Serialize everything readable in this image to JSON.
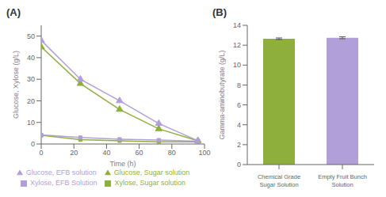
{
  "chart_data": [
    {
      "type": "line",
      "title": "(A)",
      "xlabel": "Time (h)",
      "ylabel": "Glucose, Xylose (g/L)",
      "x": [
        0,
        24,
        48,
        72,
        96
      ],
      "xlim": [
        0,
        100
      ],
      "xticks": [
        0,
        20,
        40,
        60,
        80,
        100
      ],
      "ylim": [
        0,
        55
      ],
      "yticks": [
        0,
        10,
        20,
        30,
        40,
        50
      ],
      "grid": false,
      "legend": "bottom",
      "series": [
        {
          "name": "Glucose, Sugar solution",
          "color": "#8faf3c",
          "marker": "triangle",
          "values": [
            45,
            28,
            16,
            7,
            1.5
          ]
        },
        {
          "name": "Glucose, EFB solution",
          "color": "#b09fd8",
          "marker": "triangle",
          "values": [
            48,
            30,
            20,
            9.5,
            1.5
          ]
        },
        {
          "name": "Xylose, Sugar solution",
          "color": "#8faf3c",
          "marker": "square",
          "values": [
            4.0,
            2.0,
            1.5,
            1.0,
            1.0
          ]
        },
        {
          "name": "Xylose, EFB Solution",
          "color": "#b09fd8",
          "marker": "square",
          "values": [
            4.2,
            3.0,
            2.2,
            1.8,
            1.3
          ]
        }
      ]
    },
    {
      "type": "bar",
      "title": "(B)",
      "ylabel": "Gamma-aminobutyrate (g/L)",
      "categories": [
        "Chemical Grade\nSugar Solution",
        "Empty Fruit Bunch\nSolution"
      ],
      "values": [
        12.65,
        12.75
      ],
      "errors": [
        0.08,
        0.1
      ],
      "colors": [
        "#8faf3c",
        "#b09fd8"
      ],
      "ylim": [
        0,
        14
      ],
      "yticks": [
        0,
        2,
        4,
        6,
        8,
        10,
        12,
        14
      ],
      "grid": false
    }
  ]
}
